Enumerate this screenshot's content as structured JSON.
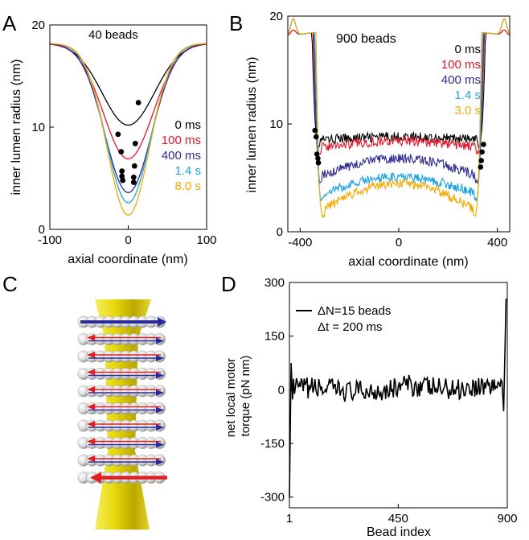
{
  "colors": {
    "black": "#000000",
    "red": "#e2162b",
    "navy": "#2e2a8f",
    "cyan": "#1aa3df",
    "orange": "#f2a900",
    "yellow": "#e8d80a",
    "arrow_blue": "#2b2a9a",
    "arrow_red": "#e02020"
  },
  "panels": {
    "A": "A",
    "B": "B",
    "C": "C",
    "D": "D"
  },
  "chart_data": [
    {
      "id": "A",
      "type": "line",
      "annotation": "40 beads",
      "xlabel": "axial coordinate (nm)",
      "ylabel": "inner lumen radius (nm)",
      "xlim": [
        -100,
        100
      ],
      "ylim": [
        0,
        20
      ],
      "xticks": [
        "-100",
        "0",
        "100"
      ],
      "yticks": [
        "0",
        "10",
        "20"
      ],
      "series": [
        {
          "name": "0 ms",
          "color": "#000000",
          "depth": 8.0,
          "width": 38,
          "markers": [
            [
              -13,
              9.3
            ],
            [
              13,
              12.4
            ]
          ]
        },
        {
          "name": "100 ms",
          "color": "#e2162b",
          "depth": 11.3,
          "width": 36,
          "markers": [
            [
              -9,
              7.6
            ],
            [
              9,
              8.4
            ]
          ]
        },
        {
          "name": "400 ms",
          "color": "#2e2a8f",
          "depth": 14.6,
          "width": 34,
          "markers": [
            [
              -8,
              5.7
            ],
            [
              8,
              6.2
            ]
          ]
        },
        {
          "name": "1.4 s",
          "color": "#1aa3df",
          "depth": 15.6,
          "width": 32,
          "markers": [
            [
              -8,
              5.2
            ],
            [
              7,
              5.1
            ]
          ]
        },
        {
          "name": "8.0 s",
          "color": "#f2a900",
          "depth": 16.8,
          "width": 31,
          "markers": [
            [
              -7,
              4.8
            ],
            [
              7,
              4.6
            ]
          ]
        }
      ]
    },
    {
      "id": "B",
      "type": "line",
      "annotation": "900 beads",
      "xlabel": "axial coordinate (nm)",
      "ylabel": "inner lumen radius (nm)",
      "xlim": [
        -450,
        450
      ],
      "ylim": [
        0,
        20
      ],
      "xticks": [
        "-400",
        "0",
        "400"
      ],
      "yticks": [
        "0",
        "10",
        "20"
      ],
      "series": [
        {
          "name": "0 ms",
          "color": "#000000",
          "base": 8.5,
          "center_bump": 0.3,
          "edge_pos": 330
        },
        {
          "name": "100 ms",
          "color": "#e2162b",
          "base": 7.8,
          "center_bump": 0.6,
          "edge_pos": 325
        },
        {
          "name": "400 ms",
          "color": "#2e2a8f",
          "base": 5.2,
          "center_bump": 1.6,
          "edge_pos": 322
        },
        {
          "name": "1.4 s",
          "color": "#1aa3df",
          "base": 3.5,
          "center_bump": 1.6,
          "edge_pos": 318
        },
        {
          "name": "3.0 s",
          "color": "#f2a900",
          "base": 2.0,
          "center_bump": 2.5,
          "edge_pos": 314
        }
      ]
    },
    {
      "id": "D",
      "type": "line",
      "xlabel": "Bead index",
      "ylabel": "net local motor torque (pN nm)",
      "xlim": [
        1,
        900
      ],
      "ylim": [
        -330,
        300
      ],
      "xticks": [
        "1",
        "450",
        "900"
      ],
      "yticks": [
        "-300",
        "-150",
        "0",
        "150",
        "300"
      ],
      "legend": [
        "ΔN=15 beads",
        "Δt = 200 ms"
      ],
      "series": [
        {
          "name": "ΔN=15 beads",
          "color": "#000000",
          "start_value": -300,
          "second_value": 75,
          "end_value": 255,
          "noise_amp": 30
        }
      ]
    }
  ]
}
